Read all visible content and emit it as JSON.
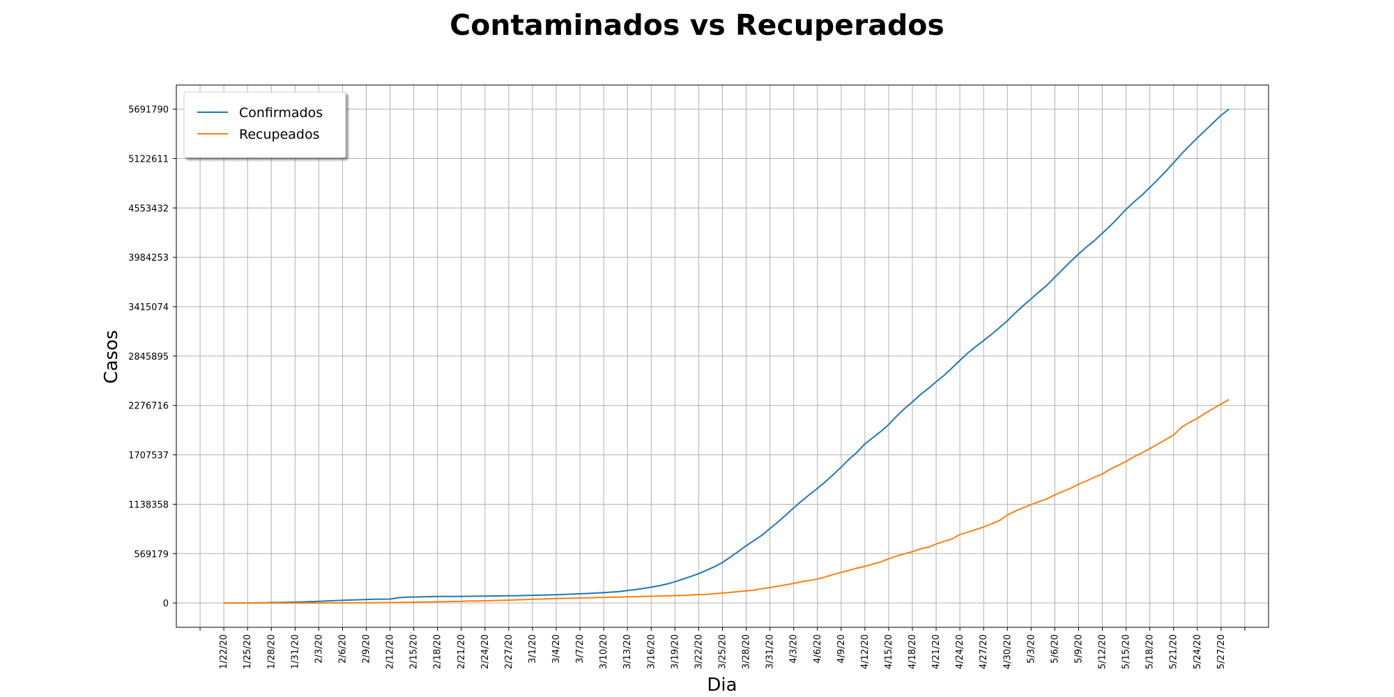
{
  "chart_data": {
    "type": "line",
    "title": "Contaminados vs Recuperados",
    "xlabel": "Dia",
    "ylabel": "Casos",
    "grid": true,
    "legend_position": "top-left",
    "x_ticks": [
      "1/22/20",
      "1/25/20",
      "1/28/20",
      "1/31/20",
      "2/3/20",
      "2/6/20",
      "2/9/20",
      "2/12/20",
      "2/15/20",
      "2/18/20",
      "2/21/20",
      "2/24/20",
      "2/27/20",
      "3/1/20",
      "3/4/20",
      "3/7/20",
      "3/10/20",
      "3/13/20",
      "3/16/20",
      "3/19/20",
      "3/22/20",
      "3/25/20",
      "3/28/20",
      "3/31/20",
      "4/3/20",
      "4/6/20",
      "4/9/20",
      "4/12/20",
      "4/15/20",
      "4/18/20",
      "4/21/20",
      "4/24/20",
      "4/27/20",
      "4/30/20",
      "5/3/20",
      "5/6/20",
      "5/9/20",
      "5/12/20",
      "5/15/20",
      "5/18/20",
      "5/21/20",
      "5/24/20",
      "5/27/20"
    ],
    "y_ticks": [
      0,
      569179,
      1138358,
      1707537,
      2276716,
      2845895,
      3415074,
      3984253,
      4553432,
      5122611,
      5691790
    ],
    "ylim": [
      -280000,
      5970000
    ],
    "xlim": [
      -6,
      132
    ],
    "series": [
      {
        "name": "Confirmados",
        "color": "#1f77b4",
        "values": [
          555,
          654,
          941,
          1434,
          2118,
          2927,
          5578,
          6166,
          8234,
          9927,
          12038,
          16787,
          19887,
          23898,
          27643,
          30802,
          34395,
          37129,
          40159,
          42768,
          44810,
          45228,
          60381,
          66892,
          69039,
          71226,
          73260,
          75138,
          75641,
          76199,
          76843,
          77745,
          78597,
          79544,
          80392,
          81353,
          82725,
          84124,
          86013,
          88371,
          90309,
          92844,
          95124,
          98334,
          102020,
          106108,
          109800,
          114100,
          118900,
          125800,
          131900,
          143300,
          154700,
          167500,
          182900,
          198500,
          218800,
          244700,
          275800,
          305300,
          337500,
          378300,
          418100,
          467500,
          529600,
          593300,
          660700,
          720100,
          782400,
          857500,
          932600,
          1013200,
          1095900,
          1176000,
          1249800,
          1321500,
          1396400,
          1479900,
          1565300,
          1657700,
          1735600,
          1834700,
          1904800,
          1976200,
          2056100,
          2152400,
          2240200,
          2317800,
          2401400,
          2472300,
          2549100,
          2623400,
          2708100,
          2795700,
          2881100,
          2955000,
          3024500,
          3097200,
          3173600,
          3252000,
          3342500,
          3427300,
          3504500,
          3585900,
          3662900,
          3754300,
          3846700,
          3937000,
          4023100,
          4101900,
          4177300,
          4261800,
          4348000,
          4441000,
          4537500,
          4623400,
          4700700,
          4790000,
          4880000,
          4974900,
          5072400,
          5176300,
          5269100,
          5361300,
          5446100,
          5535100,
          5620400,
          5691790
        ]
      },
      {
        "name": "Recupeados",
        "color": "#ff7f0e",
        "values": [
          28,
          30,
          36,
          39,
          52,
          61,
          107,
          126,
          143,
          222,
          284,
          472,
          623,
          852,
          1124,
          1487,
          2011,
          2616,
          3244,
          3946,
          4683,
          5150,
          6295,
          8058,
          9395,
          10865,
          12583,
          14352,
          16121,
          18177,
          18890,
          22886,
          23394,
          25227,
          27905,
          30384,
          33277,
          36711,
          39782,
          42716,
          45602,
          48228,
          51170,
          53796,
          55865,
          58358,
          60694,
          62494,
          64404,
          67003,
          68324,
          70251,
          72624,
          76034,
          78088,
          80840,
          83207,
          84854,
          87256,
          91576,
          97243,
          98334,
          108000,
          114092,
          122150,
          130915,
          139415,
          149082,
          164566,
          178034,
          193177,
          210263,
          225796,
          246152,
          259895,
          276515,
          300054,
          328661,
          353975,
          376096,
          402110,
          421722,
          448655,
          474261,
          510000,
          542107,
          567600,
          591600,
          623900,
          645000,
          679800,
          710600,
          738500,
          789500,
          817500,
          845900,
          876600,
          912300,
          950700,
          1014800,
          1058900,
          1098600,
          1133800,
          1168700,
          1201900,
          1246400,
          1286900,
          1323000,
          1370700,
          1406700,
          1450800,
          1486200,
          1542600,
          1586500,
          1631800,
          1685500,
          1730300,
          1779900,
          1830500,
          1883400,
          1934800,
          2026300,
          2080000,
          2129500,
          2186800,
          2241000,
          2294000,
          2346000
        ]
      }
    ]
  }
}
